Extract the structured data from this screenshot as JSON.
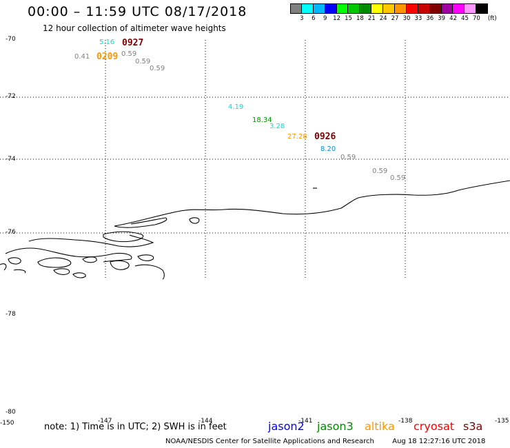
{
  "header": {
    "title": "00:00 – 11:59 UTC 08/17/2018",
    "subtitle": "12 hour collection of altimeter wave heights"
  },
  "colorbar": {
    "labels": [
      "3",
      "6",
      "9",
      "12",
      "15",
      "18",
      "21",
      "24",
      "27",
      "30",
      "33",
      "36",
      "39",
      "42",
      "45",
      "70"
    ],
    "unit": "(ft)",
    "colors": [
      "#808080",
      "#00ffff",
      "#00b8ff",
      "#0000ff",
      "#00ff00",
      "#00c800",
      "#008c00",
      "#ffff00",
      "#ffc800",
      "#ff9600",
      "#ff0000",
      "#c80000",
      "#800000",
      "#a000a0",
      "#ff00ff",
      "#ff96ff",
      "#000000"
    ]
  },
  "axes": {
    "lat_labels": [
      "-70",
      "-72",
      "-74",
      "-76",
      "-78",
      "-80"
    ],
    "lon_labels": [
      "-150",
      "-147",
      "-144",
      "-141",
      "-138",
      "-135"
    ]
  },
  "observations": [
    {
      "value": "5.16",
      "color": "#00e0e0"
    },
    {
      "value": "0.41",
      "color": "#808080"
    },
    {
      "value": "0.59",
      "color": "#808080"
    },
    {
      "value": "0.59",
      "color": "#808080"
    },
    {
      "value": "0.59",
      "color": "#808080"
    },
    {
      "value": "4.19",
      "color": "#00e0e0"
    },
    {
      "value": "18.34",
      "color": "#008c00"
    },
    {
      "value": "3.28",
      "color": "#00e0e0"
    },
    {
      "value": "27.28",
      "color": "#ff9600"
    },
    {
      "value": "8.20",
      "color": "#0090e0"
    },
    {
      "value": "0.59",
      "color": "#808080"
    },
    {
      "value": "0.59",
      "color": "#808080"
    },
    {
      "value": "0.59",
      "color": "#808080"
    }
  ],
  "times": [
    {
      "value": "0927",
      "color": "#800000"
    },
    {
      "value": "0209",
      "color": "#ff9600"
    },
    {
      "value": "0926",
      "color": "#800000"
    }
  ],
  "note": "note: 1) Time is in UTC; 2) SWH is in feet",
  "legend": [
    {
      "name": "jason2",
      "color": "#0000ff"
    },
    {
      "name": "jason3",
      "color": "#008c00"
    },
    {
      "name": "altika",
      "color": "#ff9600"
    },
    {
      "name": "cryosat",
      "color": "#ff0000"
    },
    {
      "name": "s3a",
      "color": "#800000"
    }
  ],
  "footer": {
    "credit": "NOAA/NESDIS Center for Satellite Applications and Research",
    "timestamp": "Aug 18 12:27:16 UTC 2018"
  }
}
